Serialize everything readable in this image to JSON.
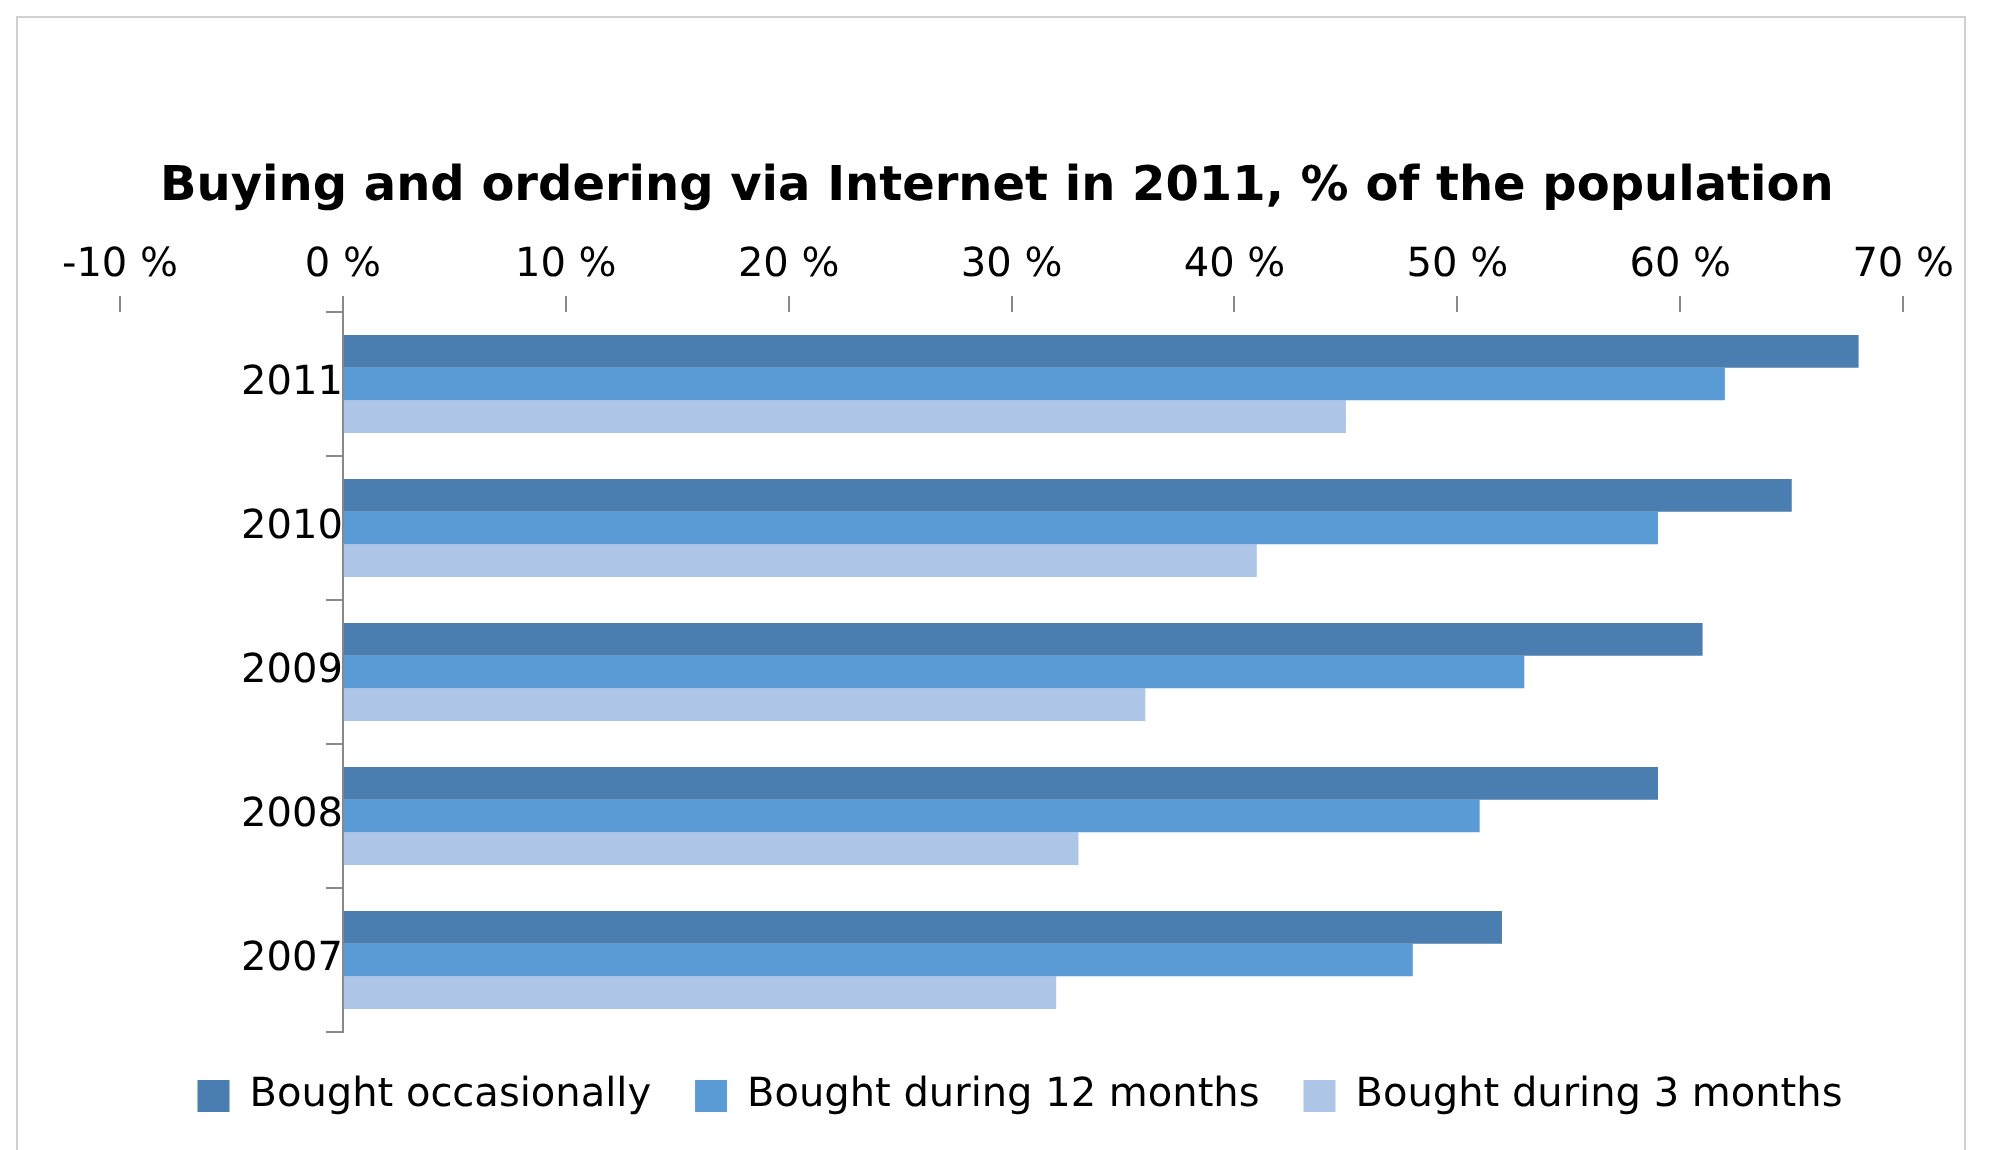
{
  "chart_data": {
    "type": "bar",
    "orientation": "horizontal",
    "title": "Buying and ordering via Internet in 2011, % of the population",
    "categories": [
      "2011",
      "2010",
      "2009",
      "2008",
      "2007"
    ],
    "series": [
      {
        "name": "Bought occasionally",
        "color": "#4a7eb0",
        "values": [
          68,
          65,
          61,
          59,
          52
        ]
      },
      {
        "name": "Bought during 12 months",
        "color": "#5b9bd5",
        "values": [
          62,
          59,
          53,
          51,
          48
        ]
      },
      {
        "name": "Bought during 3 months",
        "color": "#adc5e6",
        "values": [
          45,
          41,
          36,
          33,
          32
        ]
      }
    ],
    "xlim": [
      -10,
      70
    ],
    "xticks": [
      {
        "value": -10,
        "label": "-10 %"
      },
      {
        "value": 0,
        "label": "0 %"
      },
      {
        "value": 10,
        "label": "10 %"
      },
      {
        "value": 20,
        "label": "20 %"
      },
      {
        "value": 30,
        "label": "30 %"
      },
      {
        "value": 40,
        "label": "40 %"
      },
      {
        "value": 50,
        "label": "50 %"
      },
      {
        "value": 60,
        "label": "60 %"
      },
      {
        "value": 70,
        "label": "70 %"
      }
    ],
    "grid": false,
    "legend": "bottom"
  }
}
